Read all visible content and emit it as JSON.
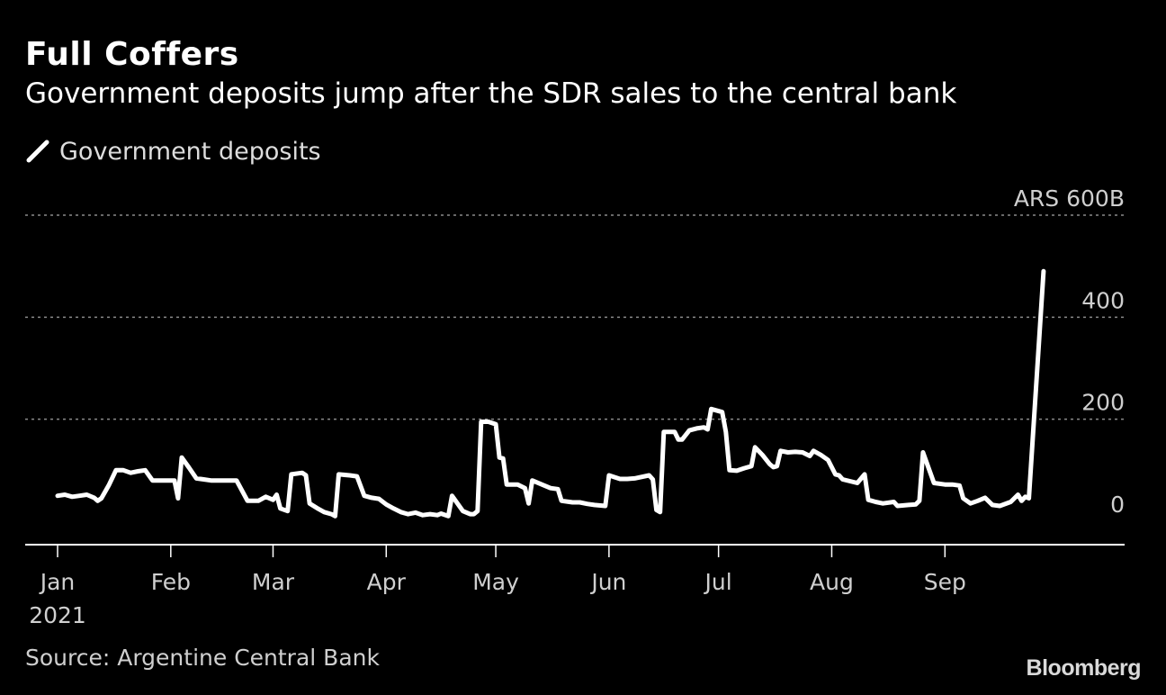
{
  "title": "Full Coffers",
  "subtitle": "Government deposits jump after the SDR sales to the central bank",
  "source": "Source: Argentine Central Bank",
  "logo_text": "Bloomberg",
  "colors": {
    "background": "#000000",
    "line": "#ffffff",
    "grid": "#8a8a8a",
    "text": "#cfcfcf"
  },
  "chart_data": {
    "type": "line",
    "title": "Full Coffers",
    "subtitle": "Government deposits jump after the SDR sales to the central bank",
    "xlabel": "",
    "ylabel": "",
    "ylim": [
      -10,
      600
    ],
    "y_ticks": [
      {
        "value": 600,
        "label": "ARS 600B"
      },
      {
        "value": 400,
        "label": "400"
      },
      {
        "value": 200,
        "label": "200"
      },
      {
        "value": 0,
        "label": "0"
      }
    ],
    "x_ticks": [
      {
        "date": "2021-01-01",
        "label": "Jan",
        "sublabel": "2021"
      },
      {
        "date": "2021-02-01",
        "label": "Feb"
      },
      {
        "date": "2021-03-01",
        "label": "Mar"
      },
      {
        "date": "2021-04-01",
        "label": "Apr"
      },
      {
        "date": "2021-05-01",
        "label": "May"
      },
      {
        "date": "2021-06-01",
        "label": "Jun"
      },
      {
        "date": "2021-07-01",
        "label": "Jul"
      },
      {
        "date": "2021-08-01",
        "label": "Aug"
      },
      {
        "date": "2021-09-01",
        "label": "Sep"
      }
    ],
    "x_domain": [
      "2021-01-01",
      "2021-09-30"
    ],
    "grid": true,
    "legend": "top-left",
    "series": [
      {
        "name": "Government deposits",
        "points": [
          [
            "2021-01-01",
            50
          ],
          [
            "2021-01-03",
            52
          ],
          [
            "2021-01-05",
            48
          ],
          [
            "2021-01-07",
            50
          ],
          [
            "2021-01-09",
            52
          ],
          [
            "2021-01-11",
            46
          ],
          [
            "2021-01-12",
            40
          ],
          [
            "2021-01-13",
            45
          ],
          [
            "2021-01-15",
            70
          ],
          [
            "2021-01-17",
            100
          ],
          [
            "2021-01-19",
            100
          ],
          [
            "2021-01-21",
            95
          ],
          [
            "2021-01-23",
            98
          ],
          [
            "2021-01-25",
            100
          ],
          [
            "2021-01-27",
            80
          ],
          [
            "2021-01-29",
            80
          ],
          [
            "2021-01-31",
            80
          ],
          [
            "2021-02-02",
            80
          ],
          [
            "2021-02-03",
            45
          ],
          [
            "2021-02-04",
            125
          ],
          [
            "2021-02-06",
            105
          ],
          [
            "2021-02-08",
            84
          ],
          [
            "2021-02-10",
            82
          ],
          [
            "2021-02-12",
            80
          ],
          [
            "2021-02-14",
            80
          ],
          [
            "2021-02-17",
            80
          ],
          [
            "2021-02-19",
            80
          ],
          [
            "2021-02-22",
            40
          ],
          [
            "2021-02-24",
            40
          ],
          [
            "2021-02-25",
            40
          ],
          [
            "2021-02-27",
            48
          ],
          [
            "2021-03-01",
            42
          ],
          [
            "2021-03-02",
            52
          ],
          [
            "2021-03-03",
            25
          ],
          [
            "2021-03-05",
            20
          ],
          [
            "2021-03-06",
            92
          ],
          [
            "2021-03-09",
            95
          ],
          [
            "2021-03-10",
            90
          ],
          [
            "2021-03-11",
            35
          ],
          [
            "2021-03-13",
            26
          ],
          [
            "2021-03-15",
            18
          ],
          [
            "2021-03-17",
            14
          ],
          [
            "2021-03-18",
            10
          ],
          [
            "2021-03-19",
            92
          ],
          [
            "2021-03-22",
            90
          ],
          [
            "2021-03-24",
            88
          ],
          [
            "2021-03-26",
            50
          ],
          [
            "2021-03-28",
            46
          ],
          [
            "2021-03-30",
            44
          ],
          [
            "2021-04-01",
            33
          ],
          [
            "2021-04-03",
            25
          ],
          [
            "2021-04-05",
            18
          ],
          [
            "2021-04-07",
            14
          ],
          [
            "2021-04-09",
            17
          ],
          [
            "2021-04-11",
            12
          ],
          [
            "2021-04-13",
            14
          ],
          [
            "2021-04-15",
            12
          ],
          [
            "2021-04-16",
            15
          ],
          [
            "2021-04-18",
            10
          ],
          [
            "2021-04-19",
            50
          ],
          [
            "2021-04-22",
            20
          ],
          [
            "2021-04-24",
            14
          ],
          [
            "2021-04-25",
            14
          ],
          [
            "2021-04-26",
            20
          ],
          [
            "2021-04-27",
            195
          ],
          [
            "2021-04-29",
            195
          ],
          [
            "2021-05-01",
            190
          ],
          [
            "2021-05-02",
            125
          ],
          [
            "2021-05-03",
            123
          ],
          [
            "2021-05-04",
            72
          ],
          [
            "2021-05-07",
            72
          ],
          [
            "2021-05-09",
            65
          ],
          [
            "2021-05-10",
            35
          ],
          [
            "2021-05-11",
            80
          ],
          [
            "2021-05-14",
            71
          ],
          [
            "2021-05-16",
            65
          ],
          [
            "2021-05-18",
            63
          ],
          [
            "2021-05-19",
            40
          ],
          [
            "2021-05-22",
            37
          ],
          [
            "2021-05-24",
            37
          ],
          [
            "2021-05-26",
            34
          ],
          [
            "2021-05-28",
            32
          ],
          [
            "2021-05-31",
            30
          ],
          [
            "2021-06-01",
            90
          ],
          [
            "2021-06-04",
            83
          ],
          [
            "2021-06-06",
            83
          ],
          [
            "2021-06-08",
            84
          ],
          [
            "2021-06-12",
            90
          ],
          [
            "2021-06-13",
            82
          ],
          [
            "2021-06-14",
            22
          ],
          [
            "2021-06-15",
            18
          ],
          [
            "2021-06-16",
            175
          ],
          [
            "2021-06-19",
            175
          ],
          [
            "2021-06-20",
            160
          ],
          [
            "2021-06-21",
            160
          ],
          [
            "2021-06-23",
            178
          ],
          [
            "2021-06-25",
            182
          ],
          [
            "2021-06-27",
            184
          ],
          [
            "2021-06-28",
            180
          ],
          [
            "2021-06-29",
            220
          ],
          [
            "2021-07-02",
            214
          ],
          [
            "2021-07-03",
            175
          ],
          [
            "2021-07-04",
            100
          ],
          [
            "2021-07-06",
            99
          ],
          [
            "2021-07-08",
            104
          ],
          [
            "2021-07-10",
            108
          ],
          [
            "2021-07-11",
            145
          ],
          [
            "2021-07-13",
            130
          ],
          [
            "2021-07-15",
            112
          ],
          [
            "2021-07-16",
            106
          ],
          [
            "2021-07-17",
            108
          ],
          [
            "2021-07-18",
            138
          ],
          [
            "2021-07-20",
            135
          ],
          [
            "2021-07-22",
            136
          ],
          [
            "2021-07-24",
            135
          ],
          [
            "2021-07-26",
            128
          ],
          [
            "2021-07-27",
            138
          ],
          [
            "2021-07-29",
            130
          ],
          [
            "2021-07-31",
            120
          ],
          [
            "2021-08-02",
            92
          ],
          [
            "2021-08-03",
            90
          ],
          [
            "2021-08-04",
            82
          ],
          [
            "2021-08-08",
            75
          ],
          [
            "2021-08-10",
            92
          ],
          [
            "2021-08-11",
            42
          ],
          [
            "2021-08-13",
            38
          ],
          [
            "2021-08-15",
            35
          ],
          [
            "2021-08-18",
            38
          ],
          [
            "2021-08-19",
            30
          ],
          [
            "2021-08-22",
            32
          ],
          [
            "2021-08-24",
            33
          ],
          [
            "2021-08-25",
            40
          ],
          [
            "2021-08-26",
            135
          ],
          [
            "2021-08-29",
            75
          ],
          [
            "2021-09-01",
            72
          ],
          [
            "2021-09-03",
            72
          ],
          [
            "2021-09-05",
            70
          ],
          [
            "2021-09-06",
            45
          ],
          [
            "2021-09-08",
            35
          ],
          [
            "2021-09-10",
            40
          ],
          [
            "2021-09-12",
            46
          ],
          [
            "2021-09-14",
            32
          ],
          [
            "2021-09-16",
            30
          ],
          [
            "2021-09-19",
            38
          ],
          [
            "2021-09-21",
            52
          ],
          [
            "2021-09-22",
            40
          ],
          [
            "2021-09-23",
            48
          ],
          [
            "2021-09-24",
            45
          ],
          [
            "2021-09-28",
            490
          ]
        ]
      }
    ]
  }
}
